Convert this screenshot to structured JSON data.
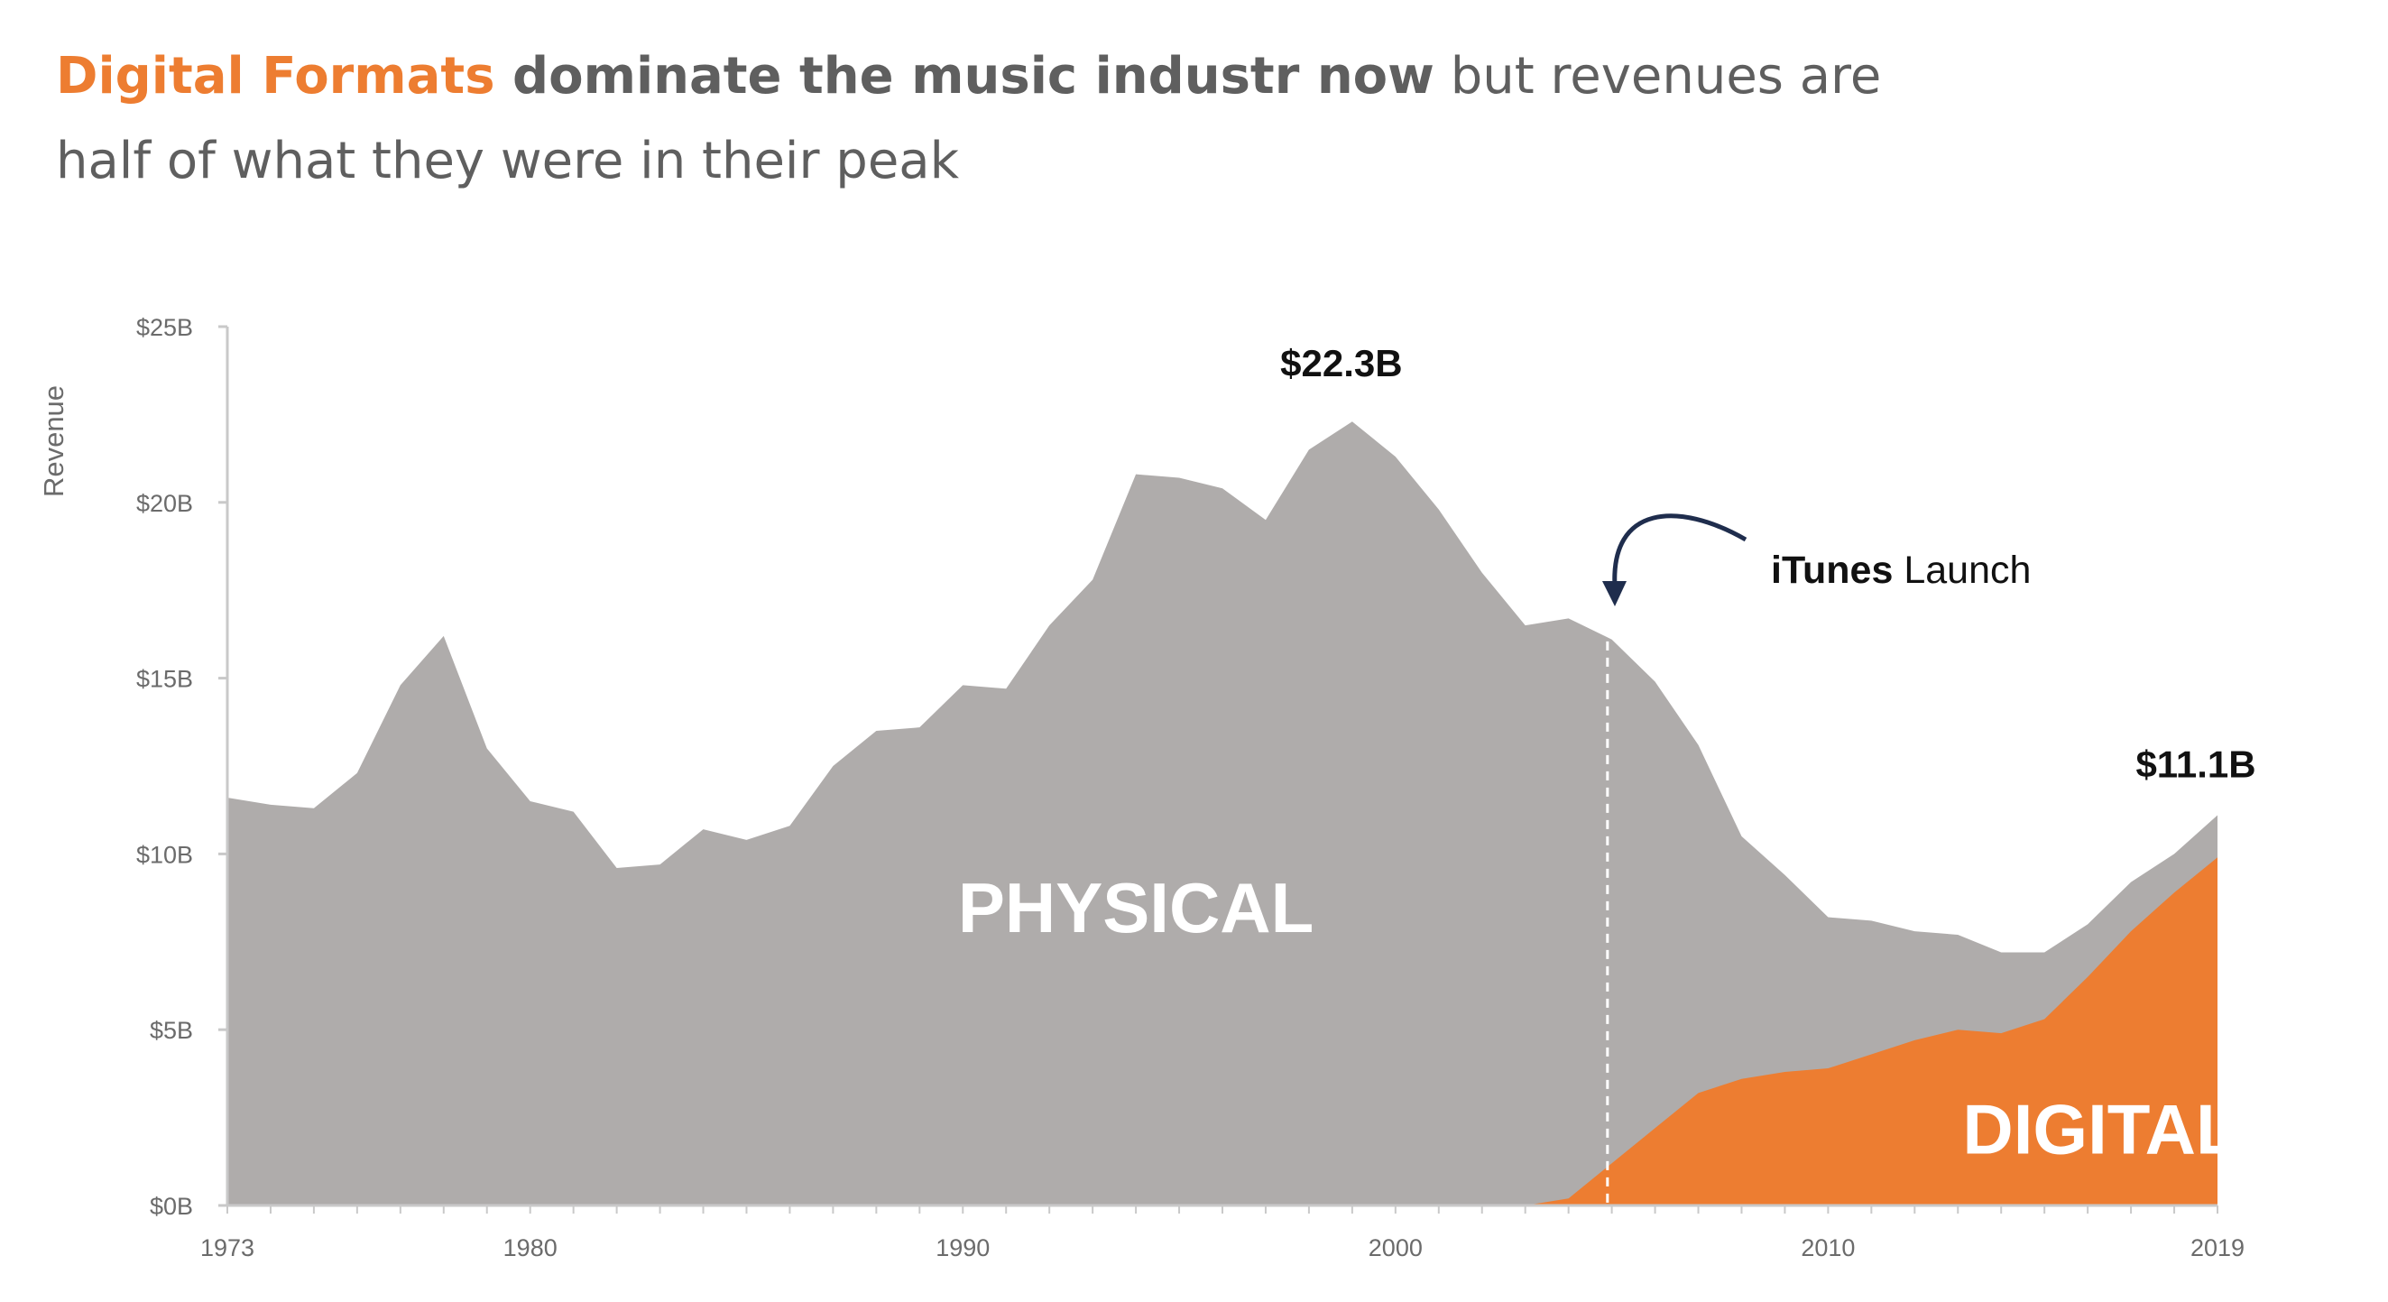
{
  "headline": {
    "accent": "Digital Formats",
    "strong": " dominate the music industr now",
    "rest_line1": " but revenues are",
    "line2": "half of what they were in their peak"
  },
  "colors": {
    "physical": "#afacab",
    "digital": "#ed7d31",
    "axis": "#c9c9c9",
    "text": "#5f5f5f",
    "arrow": "#1f2d4d"
  },
  "chart_data": {
    "type": "area",
    "stacked": true,
    "ylabel": "Revenue",
    "xlabel": "",
    "xlim": [
      1973,
      2019
    ],
    "ylim": [
      0,
      25
    ],
    "y_unit": "billions USD",
    "y_ticks": [
      {
        "value": 0,
        "label": "$0B"
      },
      {
        "value": 5,
        "label": "$5B"
      },
      {
        "value": 10,
        "label": "$10B"
      },
      {
        "value": 15,
        "label": "$15B"
      },
      {
        "value": 20,
        "label": "$20B"
      },
      {
        "value": 25,
        "label": "$25B"
      }
    ],
    "x_ticks": [
      {
        "value": 1973,
        "label": "1973"
      },
      {
        "value": 1980,
        "label": "1980"
      },
      {
        "value": 1990,
        "label": "1990"
      },
      {
        "value": 2000,
        "label": "2000"
      },
      {
        "value": 2010,
        "label": "2010"
      },
      {
        "value": 2019,
        "label": "2019"
      }
    ],
    "x": [
      1973,
      1974,
      1975,
      1976,
      1977,
      1978,
      1979,
      1980,
      1981,
      1982,
      1983,
      1984,
      1985,
      1986,
      1987,
      1988,
      1989,
      1990,
      1991,
      1992,
      1993,
      1994,
      1995,
      1996,
      1997,
      1998,
      1999,
      2000,
      2001,
      2002,
      2003,
      2004,
      2005,
      2006,
      2007,
      2008,
      2009,
      2010,
      2011,
      2012,
      2013,
      2014,
      2015,
      2016,
      2017,
      2018,
      2019
    ],
    "series": [
      {
        "name": "PHYSICAL",
        "total": [
          11.6,
          11.4,
          11.3,
          12.3,
          14.8,
          16.2,
          13.0,
          11.5,
          11.2,
          9.6,
          9.7,
          10.7,
          10.4,
          10.8,
          12.5,
          13.5,
          13.6,
          14.8,
          14.7,
          16.5,
          17.8,
          20.8,
          20.7,
          20.4,
          19.5,
          21.5,
          22.3,
          21.3,
          19.8,
          18.0,
          16.5,
          16.7,
          16.1,
          14.9,
          13.1,
          10.5,
          9.4,
          8.2,
          8.1,
          7.8,
          7.7,
          7.2,
          7.2,
          8.0,
          9.2,
          10.0,
          11.1
        ]
      },
      {
        "name": "DIGITAL",
        "values": [
          0,
          0,
          0,
          0,
          0,
          0,
          0,
          0,
          0,
          0,
          0,
          0,
          0,
          0,
          0,
          0,
          0,
          0,
          0,
          0,
          0,
          0,
          0,
          0,
          0,
          0,
          0,
          0,
          0,
          0,
          0,
          0.2,
          1.2,
          2.2,
          3.2,
          3.6,
          3.8,
          3.9,
          4.3,
          4.7,
          5.0,
          4.9,
          5.3,
          6.5,
          7.8,
          8.9,
          9.9
        ]
      }
    ],
    "annotations": [
      {
        "text": "$22.3B",
        "x": 1999,
        "y": 22.3
      },
      {
        "text": "$11.1B",
        "x": 2019,
        "y": 11.1
      },
      {
        "bold": "iTunes",
        "text": " Launch",
        "x": 2004.9,
        "type": "event-line"
      }
    ],
    "area_labels": [
      {
        "series": "PHYSICAL",
        "text": "PHYSICAL",
        "x": 1994,
        "y": 8.5
      },
      {
        "series": "DIGITAL",
        "text": "DIGITAL",
        "x": 2016.3,
        "y": 2.2
      }
    ],
    "grid": false,
    "legend": "none"
  }
}
